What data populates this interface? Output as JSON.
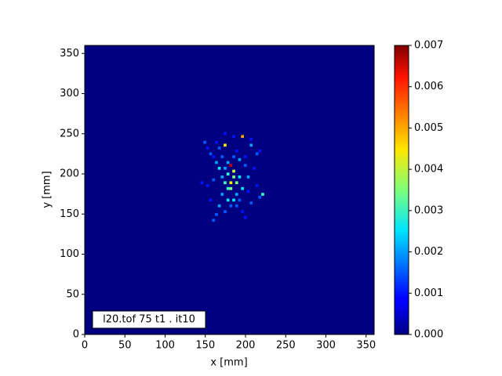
{
  "chart_data": {
    "type": "heatmap",
    "xlabel": "x [mm]",
    "ylabel": "y [mm]",
    "annotation": "l20.tof 75 t1 .  it10",
    "xlim": [
      0,
      360
    ],
    "ylim": [
      0,
      360
    ],
    "xticks": [
      0,
      50,
      100,
      150,
      200,
      250,
      300,
      350
    ],
    "yticks": [
      0,
      50,
      100,
      150,
      200,
      250,
      300,
      350
    ],
    "colormap": "jet",
    "clim": [
      0,
      0.007
    ],
    "cticks": [
      {
        "value": 0,
        "label": "0.000"
      },
      {
        "value": 0.001,
        "label": "0.001"
      },
      {
        "value": 0.002,
        "label": "0.002"
      },
      {
        "value": 0.003,
        "label": "0.003"
      },
      {
        "value": 0.004,
        "label": "0.004"
      },
      {
        "value": 0.005,
        "label": "0.005"
      },
      {
        "value": 0.006,
        "label": "0.006"
      },
      {
        "value": 0.007,
        "label": "0.007"
      }
    ],
    "bin_size": 3.6,
    "cells": {
      "x": [
        194.4,
        172.8,
        180,
        183.6,
        176.4,
        187.2,
        172.8,
        180,
        190.8,
        165.6,
        162,
        154.8,
        147.6,
        205.2,
        212.4,
        216,
        219.6,
        216,
        201.6,
        208.8,
        158.4,
        151.2,
        144,
        169.2,
        176.4,
        187.2,
        165.6,
        172.8,
        194.4,
        198,
        158.4,
        162,
        183.6,
        172.8,
        165.6,
        183.6,
        190.8,
        198,
        176.4,
        169.2,
        158.4,
        187.2,
        194.4,
        180,
        176.4,
        183.6,
        169.2,
        190.8,
        205.2,
        180,
        154.8,
        201.6,
        212.4,
        151.2,
        162,
        205.2,
        187.2,
        183.6,
        198,
        172.8
      ],
      "y": [
        244.8,
        234,
        208.8,
        201.6,
        198,
        187.2,
        187.2,
        180,
        194.4,
        205.2,
        212.4,
        223.2,
        237.6,
        234,
        223.2,
        226.8,
        172.8,
        169.2,
        194.4,
        205.2,
        190.8,
        183.6,
        187.2,
        172.8,
        165.6,
        158.4,
        158.4,
        151.2,
        151.2,
        144,
        140.4,
        147.6,
        244.8,
        248.4,
        230.4,
        219.6,
        216,
        208.8,
        212.4,
        219.6,
        219.6,
        172.8,
        180,
        187.2,
        180,
        194.4,
        194.4,
        165.6,
        162,
        158.4,
        165.6,
        176.4,
        183.6,
        230.4,
        237.6,
        241.2,
        226.8,
        165.6,
        219.6,
        205.2
      ],
      "values": [
        0.005,
        0.0045,
        0.0065,
        0.004,
        0.003,
        0.0035,
        0.003,
        0.0035,
        0.0025,
        0.0025,
        0.002,
        0.0015,
        0.0015,
        0.002,
        0.0015,
        0.001,
        0.003,
        0.0015,
        0.002,
        0.001,
        0.0015,
        0.001,
        0.001,
        0.002,
        0.0025,
        0.0015,
        0.002,
        0.0015,
        0.001,
        0.001,
        0.0015,
        0.0015,
        0.001,
        0.001,
        0.0015,
        0.0015,
        0.002,
        0.0015,
        0.002,
        0.0015,
        0.001,
        0.002,
        0.0025,
        0.0045,
        0.003,
        0.0035,
        0.002,
        0.0015,
        0.0015,
        0.0015,
        0.001,
        0.001,
        0.001,
        0.001,
        0.001,
        0.001,
        0.001,
        0.0025,
        0.001,
        0.002
      ]
    }
  }
}
